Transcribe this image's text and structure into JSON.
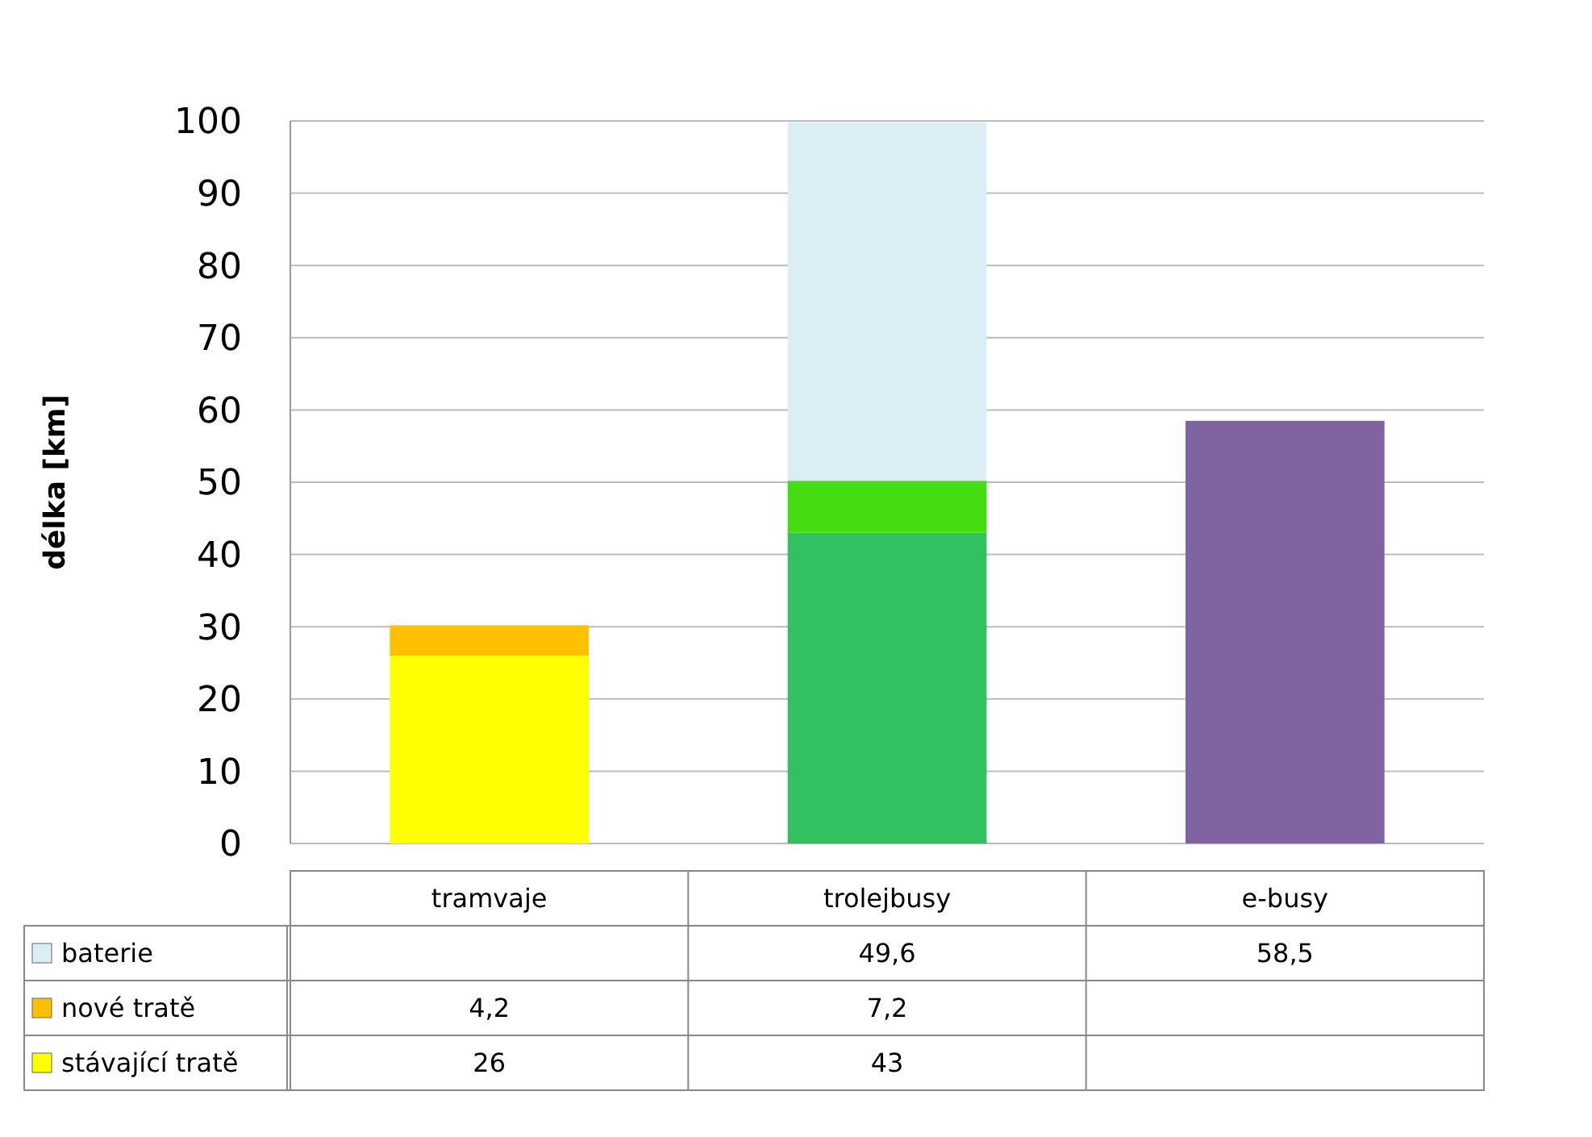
{
  "chart_data": {
    "type": "bar",
    "stacked": true,
    "ylabel": "délka [km]",
    "categories": [
      "tramvaje",
      "trolejbusy",
      "e-busy"
    ],
    "series": [
      {
        "name": "stávající tratě",
        "colors": [
          "#ffff00",
          "#33c060",
          null
        ],
        "values": [
          26,
          43,
          null
        ],
        "value_labels": [
          "26",
          "43",
          null
        ]
      },
      {
        "name": "nové tratě",
        "colors": [
          "#ffc000",
          "#44dd11",
          null
        ],
        "values": [
          4.2,
          7.2,
          null
        ],
        "value_labels": [
          "4,2",
          "7,2",
          null
        ]
      },
      {
        "name": "baterie",
        "colors": [
          null,
          "#daeef3",
          "#8064a2"
        ],
        "values": [
          null,
          49.6,
          58.5
        ],
        "value_labels": [
          null,
          "49,6",
          "58,5"
        ]
      }
    ],
    "ylim": [
      0,
      100
    ],
    "yticks": [
      0,
      10,
      20,
      30,
      40,
      50,
      60,
      70,
      80,
      90,
      100
    ],
    "grid": "y",
    "legend": "bottom left"
  }
}
